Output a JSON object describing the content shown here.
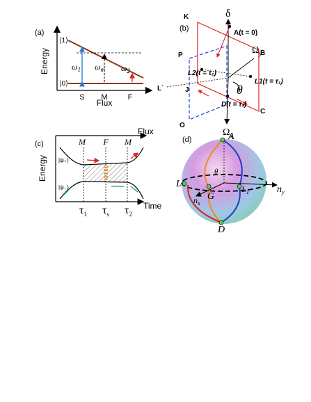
{
  "panel_a": {
    "label": "(a)",
    "ylabel": "Energy",
    "xlabel": "Flux",
    "state1": "|1⟩",
    "state0": "|0⟩",
    "ticks": [
      "S",
      "M",
      "F"
    ],
    "w1": {
      "base": "ω",
      "sub": "1"
    },
    "wm": {
      "base": "ω",
      "sub": "m"
    },
    "w2": {
      "base": "ω",
      "sub": "2"
    }
  },
  "panel_b": {
    "label": "(b)",
    "delta": "δ",
    "K": "K",
    "A": "A(t = 0)",
    "B": "B",
    "omega_y": {
      "base": "Ω",
      "sub": "y"
    },
    "P": "P",
    "L2": "L2(t = τ₂)",
    "J": "J",
    "L1": "L1(t = τ₁)",
    "Lp": "L`",
    "theta": "θ",
    "D": "D(t = τₛ)",
    "O": "O",
    "C": "C",
    "omega_x": {
      "base": "Ω",
      "sub": "x"
    }
  },
  "panel_c": {
    "label": "(c)",
    "top_ticks": [
      "M",
      "F",
      "M"
    ],
    "flux": "Flux",
    "ylabel": "Energy",
    "psi_plus": "|ψ₊⟩",
    "psi_minus": "|ψ₋⟩",
    "bottom_ticks": [
      {
        "base": "τ",
        "sub": "1"
      },
      {
        "base": "τ",
        "sub": "s"
      },
      {
        "base": "τ",
        "sub": "2"
      }
    ],
    "time": "Time"
  },
  "panel_d": {
    "label": "(d)",
    "A": "A",
    "theta": "θ",
    "Lp": "L'",
    "G": "G",
    "L1": {
      "base": "L",
      "sub": "1"
    },
    "nx": {
      "base": "n",
      "sub": "x"
    },
    "ny": {
      "base": "n",
      "sub": "y"
    },
    "D": "D"
  }
}
